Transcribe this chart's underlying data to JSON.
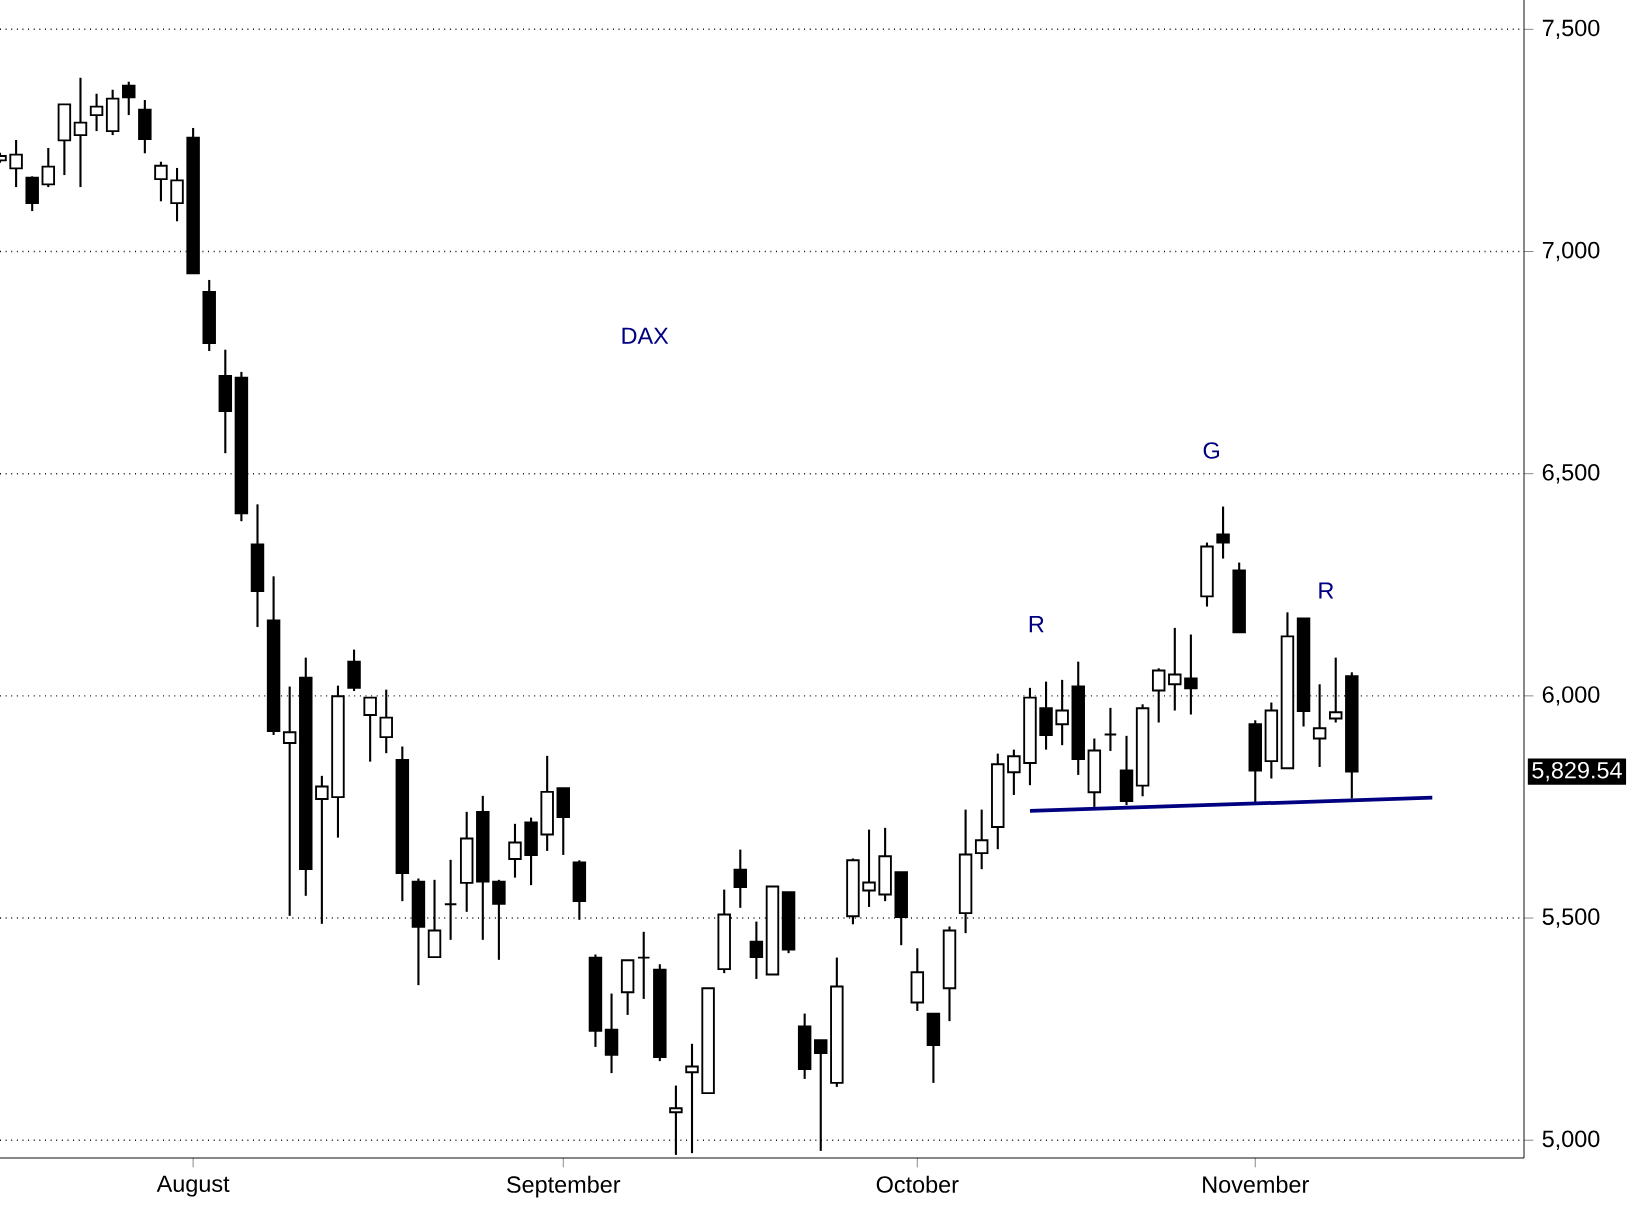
{
  "chart_data": {
    "type": "candlestick",
    "title": "DAX",
    "categories": [
      null,
      null,
      null,
      null,
      null,
      null,
      null,
      null,
      null,
      null,
      null,
      null,
      "August",
      null,
      null,
      null,
      null,
      null,
      null,
      null,
      null,
      null,
      null,
      null,
      null,
      null,
      null,
      null,
      null,
      null,
      null,
      null,
      null,
      null,
      null,
      "September",
      null,
      null,
      null,
      null,
      null,
      null,
      null,
      null,
      null,
      null,
      null,
      null,
      null,
      null,
      null,
      null,
      null,
      null,
      null,
      null,
      null,
      "October",
      null,
      null,
      null,
      null,
      null,
      null,
      null,
      null,
      null,
      null,
      null,
      null,
      null,
      null,
      null,
      null,
      null,
      null,
      null,
      null,
      "November",
      null,
      null,
      null,
      null,
      null,
      null,
      null,
      null,
      null,
      null,
      null
    ],
    "ohlc": [
      [
        7205,
        7222,
        7200,
        7215
      ],
      [
        7187,
        7251,
        7145,
        7218
      ],
      [
        7166,
        7169,
        7091,
        7109
      ],
      [
        7151,
        7233,
        7145,
        7191
      ],
      [
        7250,
        7331,
        7172,
        7331
      ],
      [
        7262,
        7391,
        7145,
        7290
      ],
      [
        7307,
        7355,
        7271,
        7326
      ],
      [
        7271,
        7364,
        7262,
        7344
      ],
      [
        7373,
        7382,
        7307,
        7347
      ],
      [
        7319,
        7341,
        7221,
        7253
      ],
      [
        7163,
        7202,
        7113,
        7193
      ],
      [
        7109,
        7188,
        7068,
        7160
      ],
      [
        7256,
        7278,
        6951,
        6951
      ],
      [
        6909,
        6936,
        6776,
        6794
      ],
      [
        6720,
        6779,
        6546,
        6641
      ],
      [
        6716,
        6729,
        6393,
        6411
      ],
      [
        6341,
        6431,
        6155,
        6236
      ],
      [
        6170,
        6269,
        5912,
        5921
      ],
      [
        5894,
        6021,
        5505,
        5918
      ],
      [
        6041,
        6086,
        5550,
        5610
      ],
      [
        5768,
        5820,
        5487,
        5796
      ],
      [
        5772,
        6023,
        5681,
        5999
      ],
      [
        6077,
        6104,
        6011,
        6018
      ],
      [
        5957,
        5996,
        5852,
        5996
      ],
      [
        5907,
        6014,
        5871,
        5951
      ],
      [
        5856,
        5886,
        5538,
        5601
      ],
      [
        5582,
        5589,
        5349,
        5480
      ],
      [
        5412,
        5586,
        5412,
        5472
      ],
      [
        5531,
        5631,
        5451,
        5531
      ],
      [
        5579,
        5739,
        5514,
        5679
      ],
      [
        5739,
        5775,
        5451,
        5582
      ],
      [
        5582,
        5586,
        5406,
        5532
      ],
      [
        5633,
        5712,
        5591,
        5670
      ],
      [
        5715,
        5726,
        5574,
        5642
      ],
      [
        5688,
        5865,
        5651,
        5784
      ],
      [
        5792,
        5792,
        5642,
        5727
      ],
      [
        5625,
        5630,
        5496,
        5538
      ],
      [
        5411,
        5418,
        5210,
        5246
      ],
      [
        5249,
        5330,
        5151,
        5192
      ],
      [
        5333,
        5405,
        5282,
        5405
      ],
      [
        5411,
        5469,
        5318,
        5411
      ],
      [
        5384,
        5396,
        5178,
        5187
      ],
      [
        5063,
        5123,
        4967,
        5072
      ],
      [
        5153,
        5217,
        4971,
        5166
      ],
      [
        5106,
        5342,
        5106,
        5342
      ],
      [
        5385,
        5564,
        5376,
        5508
      ],
      [
        5609,
        5654,
        5523,
        5570
      ],
      [
        5447,
        5492,
        5363,
        5412
      ],
      [
        5373,
        5571,
        5373,
        5571
      ],
      [
        5558,
        5558,
        5421,
        5429
      ],
      [
        5256,
        5285,
        5138,
        5160
      ],
      [
        5225,
        5225,
        4976,
        5196
      ],
      [
        5129,
        5411,
        5120,
        5346
      ],
      [
        5504,
        5634,
        5486,
        5630
      ],
      [
        5562,
        5699,
        5525,
        5580
      ],
      [
        5553,
        5703,
        5538,
        5639
      ],
      [
        5603,
        5603,
        5439,
        5502
      ],
      [
        5310,
        5432,
        5291,
        5378
      ],
      [
        5285,
        5285,
        5129,
        5214
      ],
      [
        5342,
        5481,
        5268,
        5472
      ],
      [
        5511,
        5744,
        5466,
        5643
      ],
      [
        5646,
        5744,
        5610,
        5675
      ],
      [
        5705,
        5870,
        5655,
        5846
      ],
      [
        5828,
        5879,
        5777,
        5864
      ],
      [
        5849,
        6018,
        5799,
        5996
      ],
      [
        5972,
        6032,
        5879,
        5912
      ],
      [
        5936,
        6036,
        5889,
        5967
      ],
      [
        6021,
        6077,
        5822,
        5858
      ],
      [
        5783,
        5904,
        5750,
        5877
      ],
      [
        5913,
        5973,
        5876,
        5913
      ],
      [
        5832,
        5910,
        5754,
        5763
      ],
      [
        5798,
        5981,
        5774,
        5972
      ],
      [
        6012,
        6062,
        5940,
        6057
      ],
      [
        6026,
        6153,
        5967,
        6048
      ],
      [
        6039,
        6138,
        5958,
        6017
      ],
      [
        6224,
        6345,
        6201,
        6336
      ],
      [
        6363,
        6426,
        6309,
        6345
      ],
      [
        6282,
        6300,
        6143,
        6143
      ],
      [
        5936,
        5945,
        5760,
        5832
      ],
      [
        5853,
        5985,
        5814,
        5967
      ],
      [
        5837,
        6188,
        5837,
        6134
      ],
      [
        6174,
        6174,
        5931,
        5966
      ],
      [
        5904,
        6026,
        5840,
        5927
      ],
      [
        5949,
        6086,
        5940,
        5963
      ],
      [
        6044,
        6053,
        5769,
        5829.54
      ],
      null,
      null,
      null,
      null,
      null
    ],
    "series": [
      {
        "type": "line",
        "color": "#000080",
        "values": [
          null,
          null,
          null,
          null,
          null,
          null,
          null,
          null,
          null,
          null,
          null,
          null,
          null,
          null,
          null,
          null,
          null,
          null,
          null,
          null,
          null,
          null,
          null,
          null,
          null,
          null,
          null,
          null,
          null,
          null,
          null,
          null,
          null,
          null,
          null,
          null,
          null,
          null,
          null,
          null,
          null,
          null,
          null,
          null,
          null,
          null,
          null,
          null,
          null,
          null,
          null,
          null,
          null,
          null,
          null,
          null,
          null,
          null,
          null,
          null,
          null,
          null,
          null,
          null,
          5741,
          null,
          null,
          null,
          null,
          null,
          null,
          null,
          null,
          null,
          null,
          null,
          null,
          null,
          null,
          null,
          null,
          null,
          null,
          null,
          null,
          null,
          null,
          null,
          null,
          5771
        ]
      }
    ],
    "ylim": [
      4960,
      7566
    ],
    "yticks": [
      {
        "value": 5000,
        "label": "5,000"
      },
      {
        "value": 5500,
        "label": "5,500"
      },
      {
        "value": 6000,
        "label": "6,000"
      },
      {
        "value": 6500,
        "label": "6,500"
      },
      {
        "value": 7000,
        "label": "7,000"
      },
      {
        "value": 7500,
        "label": "7,500"
      }
    ],
    "grid": "y",
    "annotations": [
      "R",
      "G",
      "R",
      "5,829.54"
    ]
  }
}
